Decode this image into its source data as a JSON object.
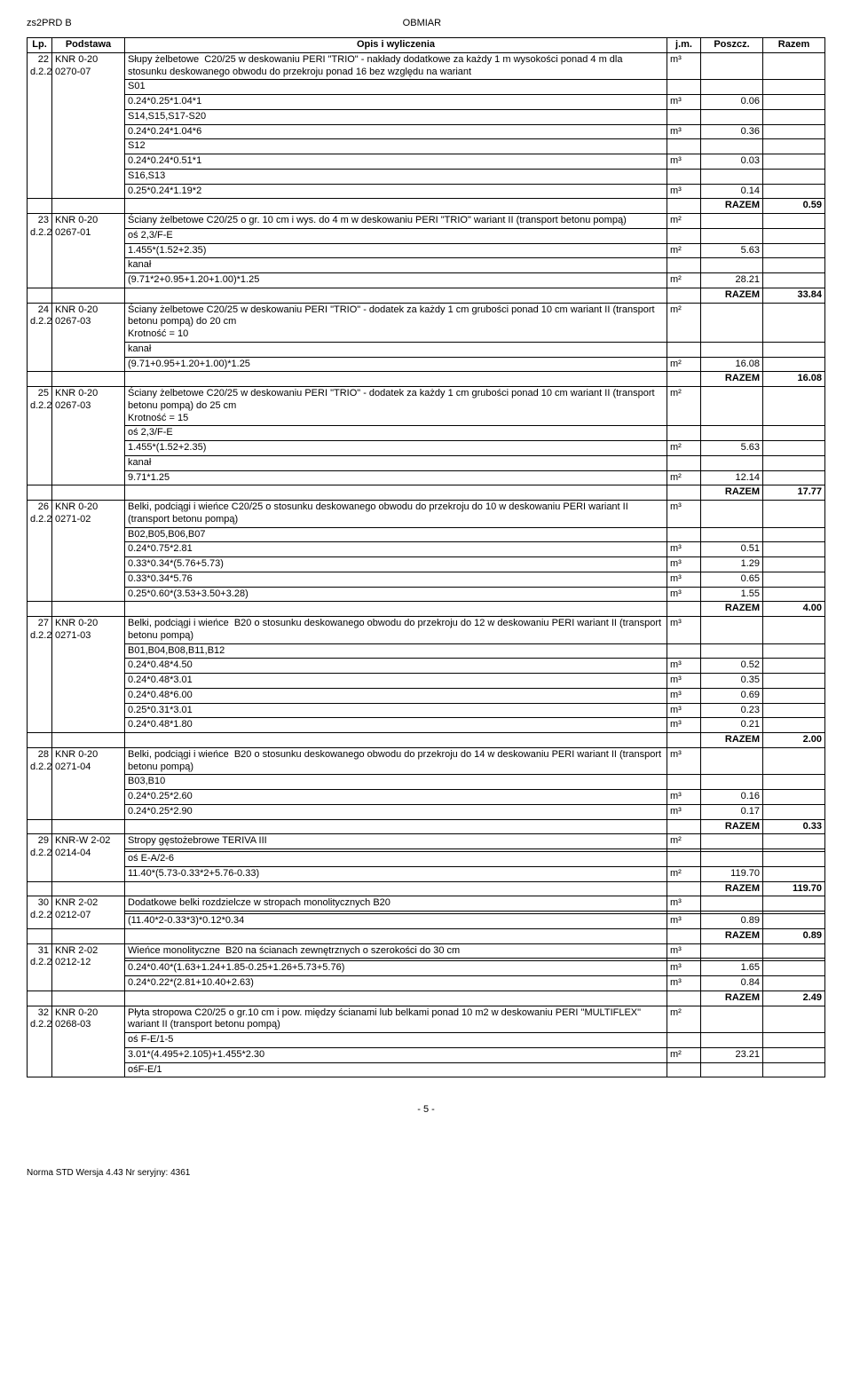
{
  "header": {
    "left": "zs2PRD B",
    "center": "OBMIAR"
  },
  "columns": [
    "Lp.",
    "Podstawa",
    "Opis i wyliczenia",
    "j.m.",
    "Poszcz.",
    "Razem"
  ],
  "items": [
    {
      "lp": "22",
      "dref": "d.2.2",
      "pod": "KNR 0-20 0270-07",
      "desc": "Słupy żelbetowe  C20/25 w deskowaniu PERI \"TRIO\" - nakłady dodatkowe za każdy 1 m wysokości ponad 4 m dla stosunku deskowanego obwodu do przekroju ponad 16 bez względu na wariant",
      "jm": "m3",
      "lines": [
        {
          "t": "S01"
        },
        {
          "t": "0.24*0.25*1.04*1",
          "jm": "m3",
          "v": "0.06"
        },
        {
          "t": "S14,S15,S17-S20"
        },
        {
          "t": "0.24*0.24*1.04*6",
          "jm": "m3",
          "v": "0.36"
        },
        {
          "t": "S12"
        },
        {
          "t": "0.24*0.24*0.51*1",
          "jm": "m3",
          "v": "0.03"
        },
        {
          "t": "S16,S13"
        },
        {
          "t": "0.25*0.24*1.19*2",
          "jm": "m3",
          "v": "0.14"
        }
      ],
      "razem": "0.59"
    },
    {
      "lp": "23",
      "dref": "d.2.2",
      "pod": "KNR 0-20 0267-01",
      "desc": "Ściany żelbetowe C20/25 o gr. 10 cm i wys. do 4 m w deskowaniu PERI \"TRIO\" wariant II (transport betonu pompą)",
      "jm": "m2",
      "lines": [
        {
          "t": "oś 2,3/F-E"
        },
        {
          "t": "1.455*(1.52+2.35)",
          "jm": "m2",
          "v": "5.63"
        },
        {
          "t": "kanał"
        },
        {
          "t": "(9.71*2+0.95+1.20+1.00)*1.25",
          "jm": "m2",
          "v": "28.21"
        }
      ],
      "razem": "33.84"
    },
    {
      "lp": "24",
      "dref": "d.2.2",
      "pod": "KNR 0-20 0267-03",
      "desc": "Ściany żelbetowe C20/25 w deskowaniu PERI \"TRIO\" - dodatek za każdy 1 cm grubości ponad 10 cm wariant II (transport betonu pompą) do 20 cm\nKrotność = 10",
      "jm": "m2",
      "lines": [
        {
          "t": "kanał"
        },
        {
          "t": "(9.71+0.95+1.20+1.00)*1.25",
          "jm": "m2",
          "v": "16.08"
        }
      ],
      "razem": "16.08"
    },
    {
      "lp": "25",
      "dref": "d.2.2",
      "pod": "KNR 0-20 0267-03",
      "desc": "Ściany żelbetowe C20/25 w deskowaniu PERI \"TRIO\" - dodatek za każdy 1 cm grubości ponad 10 cm wariant II (transport betonu pompą) do 25 cm\nKrotność = 15",
      "jm": "m2",
      "lines": [
        {
          "t": "oś 2,3/F-E"
        },
        {
          "t": "1.455*(1.52+2.35)",
          "jm": "m2",
          "v": "5.63"
        },
        {
          "t": "kanał"
        },
        {
          "t": "9.71*1.25",
          "jm": "m2",
          "v": "12.14"
        }
      ],
      "razem": "17.77"
    },
    {
      "lp": "26",
      "dref": "d.2.2",
      "pod": "KNR 0-20 0271-02",
      "desc": "Belki, podciągi i wieńce C20/25 o stosunku deskowanego obwodu do przekroju do 10 w deskowaniu PERI wariant II (transport betonu pompą)",
      "jm": "m3",
      "lines": [
        {
          "t": "B02,B05,B06,B07"
        },
        {
          "t": "0.24*0.75*2.81",
          "jm": "m3",
          "v": "0.51"
        },
        {
          "t": "0.33*0.34*(5.76+5.73)",
          "jm": "m3",
          "v": "1.29"
        },
        {
          "t": "0.33*0.34*5.76",
          "jm": "m3",
          "v": "0.65"
        },
        {
          "t": "0.25*0.60*(3.53+3.50+3.28)",
          "jm": "m3",
          "v": "1.55"
        }
      ],
      "razem": "4.00"
    },
    {
      "lp": "27",
      "dref": "d.2.2",
      "pod": "KNR 0-20 0271-03",
      "desc": "Belki, podciągi i wieńce  B20 o stosunku deskowanego obwodu do przekroju do 12 w deskowaniu PERI wariant II (transport betonu pompą)",
      "jm": "m3",
      "lines": [
        {
          "t": "B01,B04,B08,B11,B12"
        },
        {
          "t": "0.24*0.48*4.50",
          "jm": "m3",
          "v": "0.52"
        },
        {
          "t": "0.24*0.48*3.01",
          "jm": "m3",
          "v": "0.35"
        },
        {
          "t": "0.24*0.48*6.00",
          "jm": "m3",
          "v": "0.69"
        },
        {
          "t": "0.25*0.31*3.01",
          "jm": "m3",
          "v": "0.23"
        },
        {
          "t": "0.24*0.48*1.80",
          "jm": "m3",
          "v": "0.21"
        }
      ],
      "razem": "2.00"
    },
    {
      "lp": "28",
      "dref": "d.2.2",
      "pod": "KNR 0-20 0271-04",
      "desc": "Belki, podciągi i wieńce  B20 o stosunku deskowanego obwodu do przekroju do 14 w deskowaniu PERI wariant II (transport betonu pompą)",
      "jm": "m3",
      "lines": [
        {
          "t": "B03,B10"
        },
        {
          "t": "0.24*0.25*2.60",
          "jm": "m3",
          "v": "0.16"
        },
        {
          "t": "0.24*0.25*2.90",
          "jm": "m3",
          "v": "0.17"
        }
      ],
      "razem": "0.33"
    },
    {
      "lp": "29",
      "dref": "d.2.2",
      "pod": "KNR-W 2-02 0214-04",
      "desc": "Stropy gęstożebrowe TERIVA III",
      "jm": "m2",
      "blank_after_desc": true,
      "lines": [
        {
          "t": "oś E-A/2-6"
        },
        {
          "t": "11.40*(5.73-0.33*2+5.76-0.33)",
          "jm": "m2",
          "v": "119.70"
        }
      ],
      "razem": "119.70"
    },
    {
      "lp": "30",
      "dref": "d.2.2",
      "pod": "KNR 2-02 0212-07",
      "desc": "Dodatkowe belki rozdzielcze w stropach monolitycznych B20",
      "jm": "m3",
      "blank_after_desc": true,
      "lines": [
        {
          "t": "(11.40*2-0.33*3)*0.12*0.34",
          "jm": "m3",
          "v": "0.89"
        }
      ],
      "razem": "0.89"
    },
    {
      "lp": "31",
      "dref": "d.2.2",
      "pod": "KNR 2-02 0212-12",
      "desc": "Wieńce monolityczne  B20 na ścianach zewnętrznych o szerokości do 30 cm",
      "jm": "m3",
      "blank_after_desc": true,
      "lines": [
        {
          "t": "0.24*0.40*(1.63+1.24+1.85-0.25+1.26+5.73+5.76)",
          "jm": "m3",
          "v": "1.65"
        },
        {
          "t": "0.24*0.22*(2.81+10.40+2.63)",
          "jm": "m3",
          "v": "0.84"
        }
      ],
      "razem": "2.49"
    },
    {
      "lp": "32",
      "dref": "d.2.2",
      "pod": "KNR 0-20 0268-03",
      "desc": "Płyta stropowa C20/25 o gr.10 cm i pow. między ścianami lub belkami ponad 10 m2 w deskowaniu PERI \"MULTIFLEX\" wariant II (transport betonu pompą)",
      "jm": "m2",
      "lines": [
        {
          "t": "oś F-E/1-5"
        },
        {
          "t": "3.01*(4.495+2.105)+1.455*2.30",
          "jm": "m2",
          "v": "23.21"
        },
        {
          "t": "ośF-E/1"
        }
      ],
      "razem": null
    }
  ],
  "razem_label": "RAZEM",
  "page_num": "- 5 -",
  "footer": "Norma STD Wersja 4.43 Nr seryjny: 4361"
}
